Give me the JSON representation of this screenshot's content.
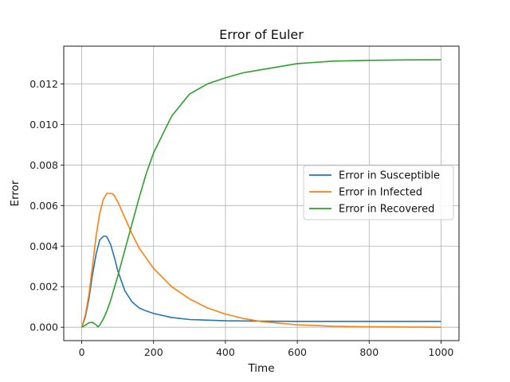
{
  "chart_data": {
    "type": "line",
    "title": "Error of Euler",
    "xlabel": "Time",
    "ylabel": "Error",
    "xlim": [
      -50,
      1050
    ],
    "ylim": [
      -0.00066,
      0.01386
    ],
    "xticks": [
      0,
      200,
      400,
      600,
      800,
      1000
    ],
    "xtick_labels": [
      "0",
      "200",
      "400",
      "600",
      "800",
      "1000"
    ],
    "yticks": [
      0.0,
      0.002,
      0.004,
      0.006,
      0.008,
      0.01,
      0.012
    ],
    "ytick_labels": [
      "0.000",
      "0.002",
      "0.004",
      "0.006",
      "0.008",
      "0.010",
      "0.012"
    ],
    "grid": true,
    "legend_position": "center-right",
    "series": [
      {
        "name": "Error in Susceptible",
        "color": "#1f77b4",
        "x": [
          0,
          10,
          20,
          30,
          40,
          50,
          60,
          65,
          70,
          80,
          90,
          100,
          120,
          140,
          160,
          180,
          200,
          250,
          300,
          400,
          500,
          600,
          700,
          800,
          900,
          1000
        ],
        "y": [
          0,
          0.0005,
          0.0014,
          0.0026,
          0.0036,
          0.0043,
          0.00448,
          0.0045,
          0.00445,
          0.0041,
          0.0035,
          0.0028,
          0.0018,
          0.00125,
          0.00095,
          0.0008,
          0.00068,
          0.00048,
          0.00038,
          0.00032,
          0.0003,
          0.00029,
          0.00029,
          0.00029,
          0.00029,
          0.00029
        ]
      },
      {
        "name": "Error in Infected",
        "color": "#ff7f0e",
        "x": [
          0,
          10,
          20,
          30,
          40,
          50,
          60,
          70,
          80,
          85,
          90,
          100,
          120,
          140,
          160,
          180,
          200,
          250,
          300,
          350,
          400,
          450,
          500,
          600,
          700,
          800,
          900,
          1000
        ],
        "y": [
          0,
          0.0006,
          0.0016,
          0.003,
          0.0045,
          0.0056,
          0.0063,
          0.0066,
          0.0066,
          0.00658,
          0.0065,
          0.0062,
          0.0054,
          0.0046,
          0.0039,
          0.0034,
          0.0029,
          0.002,
          0.0014,
          0.00095,
          0.00065,
          0.00043,
          0.00028,
          0.00012,
          5e-05,
          2e-05,
          1e-05,
          0
        ]
      },
      {
        "name": "Error in Recovered",
        "color": "#2ca02c",
        "x": [
          0,
          10,
          20,
          30,
          40,
          45,
          50,
          60,
          70,
          80,
          100,
          120,
          140,
          160,
          180,
          200,
          250,
          300,
          350,
          400,
          450,
          500,
          600,
          700,
          800,
          900,
          1000
        ],
        "y": [
          0,
          0.0001,
          0.00022,
          0.00024,
          0.00012,
          2e-05,
          0.0001,
          0.0004,
          0.0008,
          0.0013,
          0.0025,
          0.0038,
          0.0051,
          0.0064,
          0.0076,
          0.0086,
          0.0104,
          0.0115,
          0.012,
          0.0123,
          0.01255,
          0.0127,
          0.013,
          0.01312,
          0.01316,
          0.01318,
          0.01319
        ]
      }
    ]
  }
}
